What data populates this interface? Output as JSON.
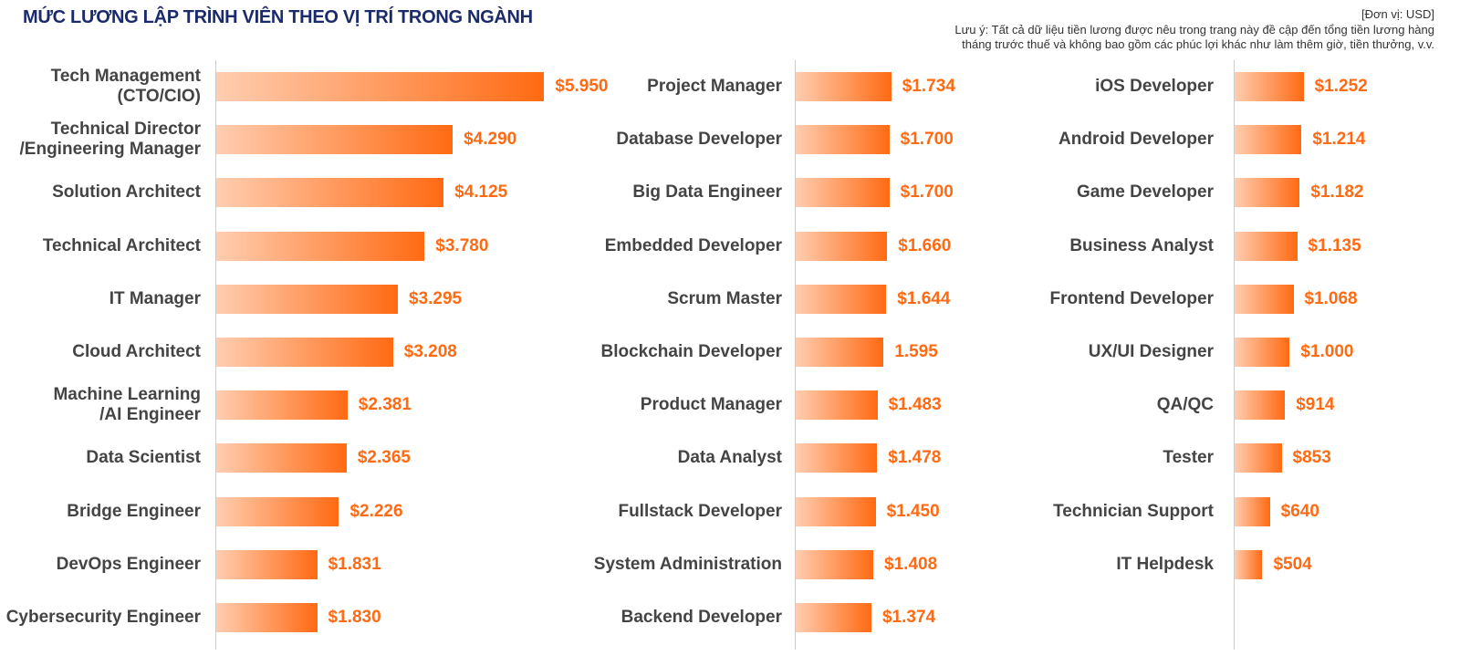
{
  "title": "MỨC LƯƠNG LẬP TRÌNH VIÊN THEO VỊ TRÍ TRONG NGÀNH",
  "unit": "[Đơn vị: USD]",
  "note": "Lưu ý: Tất cả dữ liệu tiền lương được nêu trong trang này đề cập đến tổng tiền lương hàng\ntháng trước thuế và không bao gồm các phúc lợi khác như làm thêm giờ, tiền thưởng, v.v.",
  "chart_data": [
    {
      "type": "bar",
      "orientation": "horizontal",
      "color": "#ff6a13",
      "categories": [
        "Tech Management\n(CTO/CIO)",
        "Technical Director\n/Engineering Manager",
        "Solution Architect",
        "Technical Architect",
        "IT Manager",
        "Cloud Architect",
        "Machine Learning\n/AI Engineer",
        "Data Scientist",
        "Bridge Engineer",
        "DevOps Engineer",
        "Cybersecurity Engineer"
      ],
      "values": [
        5950,
        4290,
        4125,
        3780,
        3295,
        3208,
        2381,
        2365,
        2226,
        1831,
        1830
      ],
      "value_labels": [
        "$5.950",
        "$4.290",
        "$4.125",
        "$3.780",
        "$3.295",
        "$3.208",
        "$2.381",
        "$2.365",
        "$2.226",
        "$1.831",
        "$1.830"
      ]
    },
    {
      "type": "bar",
      "orientation": "horizontal",
      "color": "#ff6a13",
      "categories": [
        "Project Manager",
        "Database Developer",
        "Big Data Engineer",
        "Embedded Developer",
        "Scrum Master",
        "Blockchain Developer",
        "Product Manager",
        "Data Analyst",
        "Fullstack Developer",
        "System Administration",
        "Backend Developer"
      ],
      "values": [
        1734,
        1700,
        1700,
        1660,
        1644,
        1595,
        1483,
        1478,
        1450,
        1408,
        1374
      ],
      "value_labels": [
        "$1.734",
        "$1.700",
        "$1.700",
        "$1.660",
        "$1.644",
        "1.595",
        "$1.483",
        "$1.478",
        "$1.450",
        "$1.408",
        "$1.374"
      ]
    },
    {
      "type": "bar",
      "orientation": "horizontal",
      "color": "#ff6a13",
      "categories": [
        "iOS Developer",
        "Android Developer",
        "Game Developer",
        "Business Analyst",
        "Frontend Developer",
        "UX/UI Designer",
        "QA/QC",
        "Tester",
        "Technician Support",
        "IT Helpdesk"
      ],
      "values": [
        1252,
        1214,
        1182,
        1135,
        1068,
        1000,
        914,
        853,
        640,
        504
      ],
      "value_labels": [
        "$1.252",
        "$1.214",
        "$1.182",
        "$1.135",
        "$1.068",
        "$1.000",
        "$914",
        "$853",
        "$640",
        "$504"
      ]
    }
  ]
}
